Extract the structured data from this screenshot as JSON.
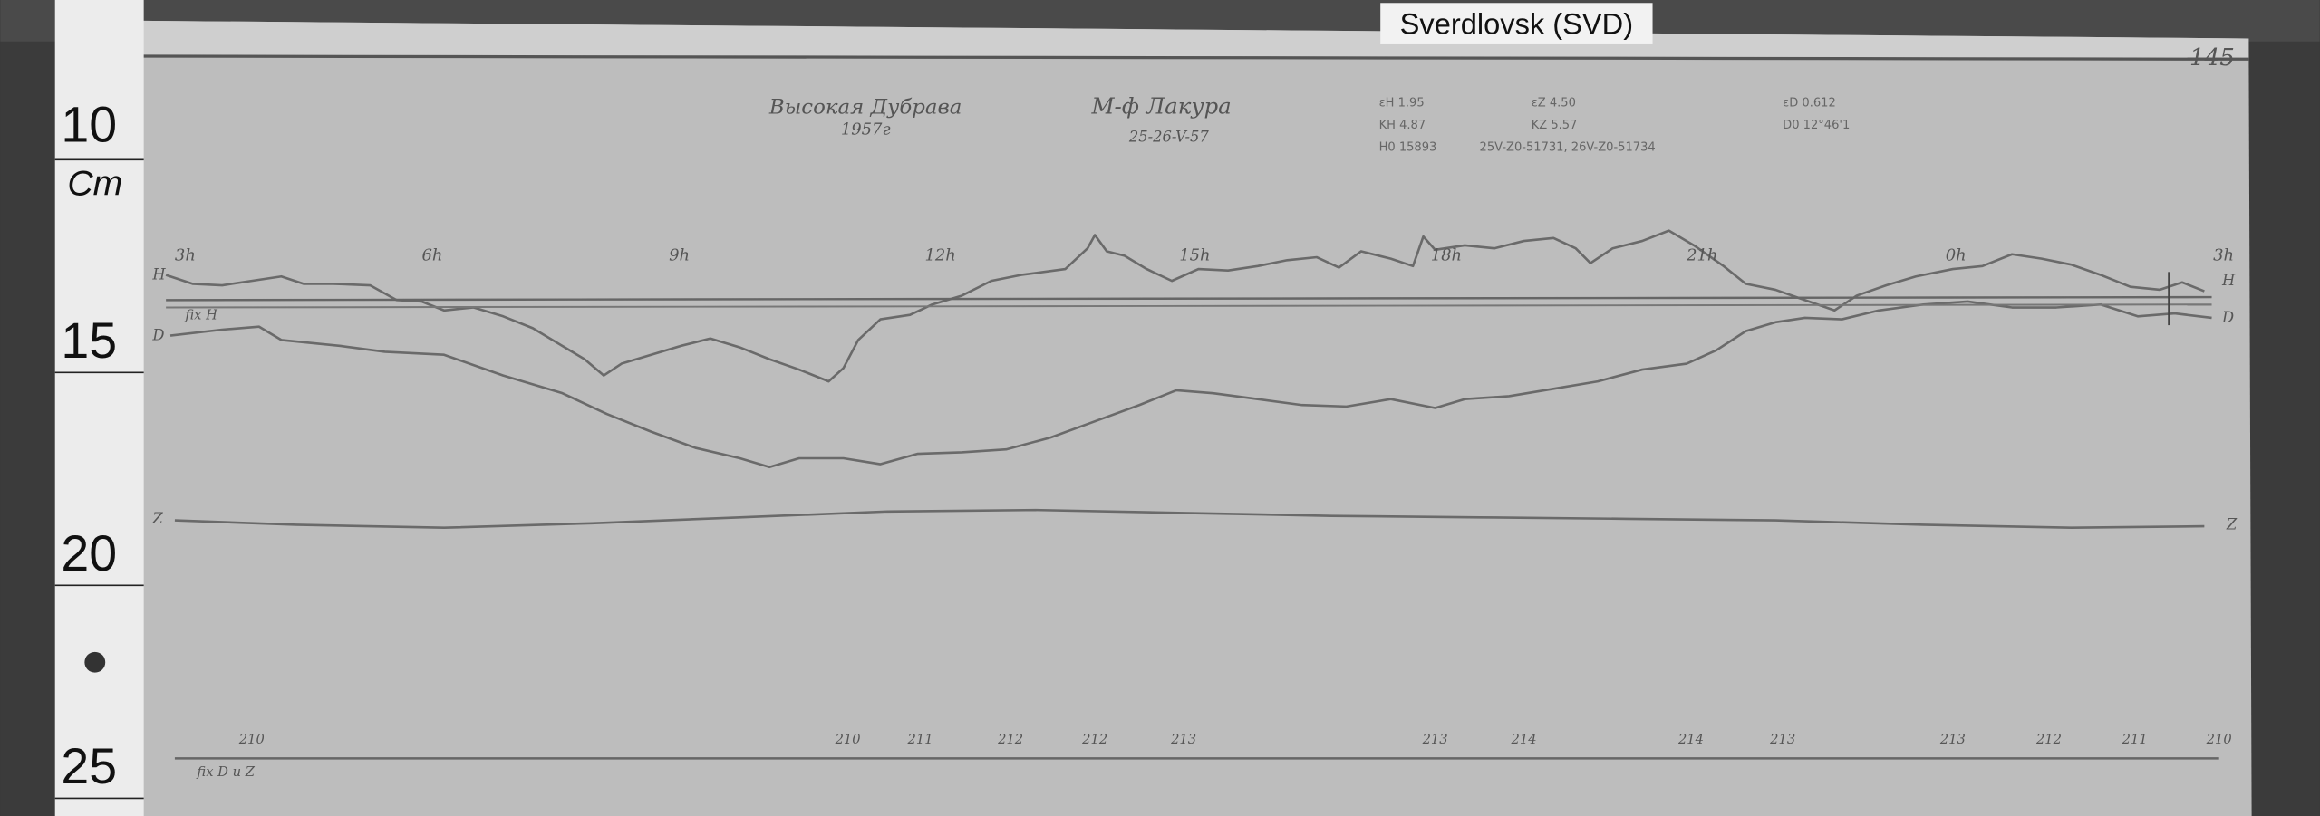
{
  "label": "Sverdlovsk (SVD)",
  "ruler": {
    "labels": [
      "10",
      "Cm",
      "15",
      "20",
      "25"
    ]
  },
  "sheet": {
    "number": "145",
    "title": "Высокая Дубрава",
    "year": "1957г",
    "observer": "М-ф Лакура",
    "dates": "25-26-V-57",
    "params": [
      "εH 1.95",
      "εZ 4.50",
      "εD 0.612",
      "KH 4.87",
      "KZ 5.57",
      "D0 12°46'1",
      "H0 15893",
      "25V-Z0-51731, 26V-Z0-51734"
    ],
    "hours": [
      "3h",
      "6h",
      "9h",
      "12h",
      "15h",
      "18h",
      "21h",
      "0h",
      "3h"
    ],
    "trace_labels": [
      "H",
      "D",
      "Z",
      "H",
      "D",
      "Z"
    ],
    "baseline_labels": [
      "fix H",
      "fix D u Z"
    ],
    "bottom_values": [
      "210",
      "210",
      "211",
      "212",
      "212",
      "213",
      "213",
      "214",
      "214",
      "213",
      "213",
      "212",
      "211",
      "210"
    ]
  }
}
